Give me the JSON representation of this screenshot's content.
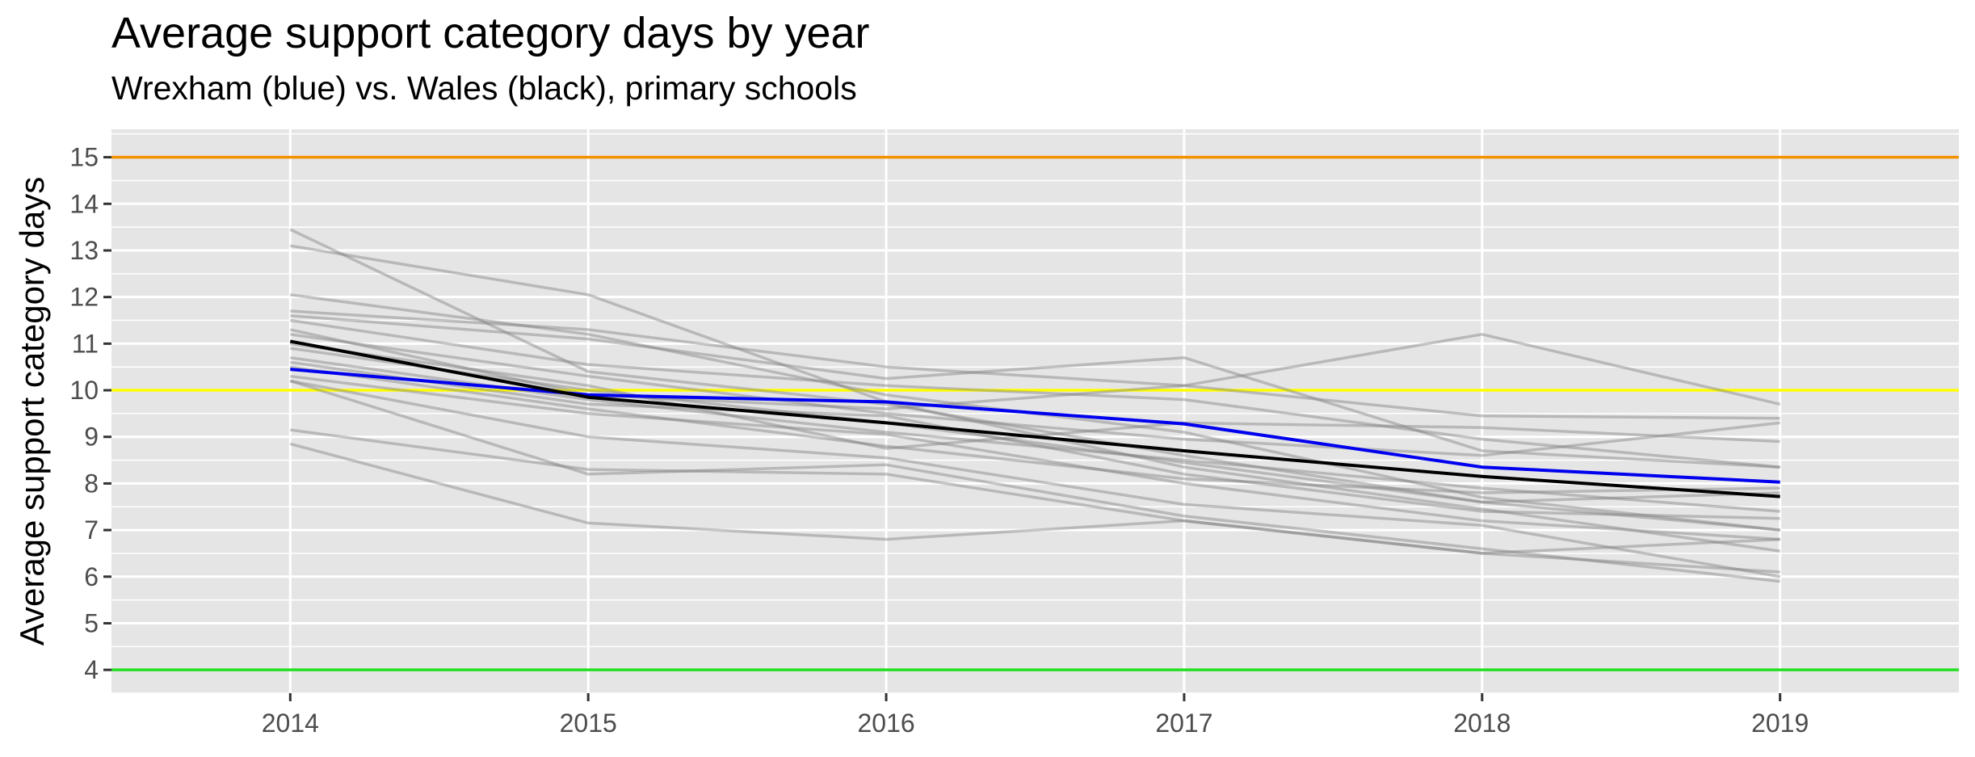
{
  "chart_data": {
    "type": "line",
    "title": "Average support category days by year",
    "subtitle": "Wrexham (blue) vs. Wales (black), primary schools",
    "xlabel": "",
    "ylabel": "Average support category days",
    "x": [
      2014,
      2015,
      2016,
      2017,
      2018,
      2019
    ],
    "xlim": [
      2013.4,
      2019.6
    ],
    "ylim": [
      3.5,
      15.6
    ],
    "y_ticks": [
      4,
      5,
      6,
      7,
      8,
      9,
      10,
      11,
      12,
      13,
      14,
      15
    ],
    "grid": true,
    "background": "#e5e5e5",
    "reference_lines": [
      {
        "y": 15,
        "color": "#f39200"
      },
      {
        "y": 10,
        "color": "#ffff00"
      },
      {
        "y": 4,
        "color": "#22e022"
      }
    ],
    "background_series_color": "#808080",
    "background_series": [
      {
        "values": [
          13.45,
          10.4,
          9.7,
          8.6,
          7.6,
          7.0
        ]
      },
      {
        "values": [
          13.1,
          12.05,
          9.75,
          8.35,
          7.45,
          6.55
        ]
      },
      {
        "values": [
          12.05,
          11.2,
          9.9,
          9.1,
          7.7,
          7.0
        ]
      },
      {
        "values": [
          11.7,
          11.3,
          10.5,
          10.1,
          9.45,
          9.4
        ]
      },
      {
        "values": [
          11.6,
          11.1,
          10.25,
          10.7,
          8.7,
          8.35
        ]
      },
      {
        "values": [
          11.5,
          10.55,
          10.1,
          9.8,
          8.95,
          8.35
        ]
      },
      {
        "values": [
          11.3,
          9.9,
          9.6,
          10.1,
          11.2,
          9.7
        ]
      },
      {
        "values": [
          11.2,
          10.3,
          9.5,
          8.95,
          8.6,
          9.3
        ]
      },
      {
        "values": [
          10.9,
          10.0,
          9.3,
          8.45,
          7.6,
          7.8
        ]
      },
      {
        "values": [
          10.6,
          9.7,
          9.45,
          8.2,
          7.4,
          7.25
        ]
      },
      {
        "values": [
          10.3,
          9.5,
          9.05,
          8.0,
          7.2,
          6.8
        ]
      },
      {
        "values": [
          10.2,
          9.0,
          8.55,
          7.55,
          7.1,
          6.0
        ]
      },
      {
        "values": [
          10.2,
          8.2,
          8.4,
          7.3,
          6.6,
          5.9
        ]
      },
      {
        "values": [
          9.15,
          8.3,
          8.2,
          7.2,
          6.5,
          6.8
        ]
      },
      {
        "values": [
          8.85,
          7.15,
          6.8,
          7.2,
          6.5,
          6.1
        ]
      },
      {
        "values": [
          10.5,
          9.6,
          8.8,
          8.1,
          7.8,
          7.9
        ]
      },
      {
        "values": [
          10.7,
          9.8,
          9.1,
          8.5,
          7.9,
          7.4
        ]
      },
      {
        "values": [
          11.0,
          10.1,
          8.75,
          9.3,
          9.2,
          8.9
        ]
      }
    ],
    "series": [
      {
        "values": [
          10.45,
          9.9,
          9.75,
          9.28,
          8.35,
          8.03
        ],
        "color": "#0000ee"
      },
      {
        "values": [
          11.05,
          9.85,
          9.3,
          8.7,
          8.15,
          7.72
        ],
        "color": "#000000"
      }
    ]
  }
}
